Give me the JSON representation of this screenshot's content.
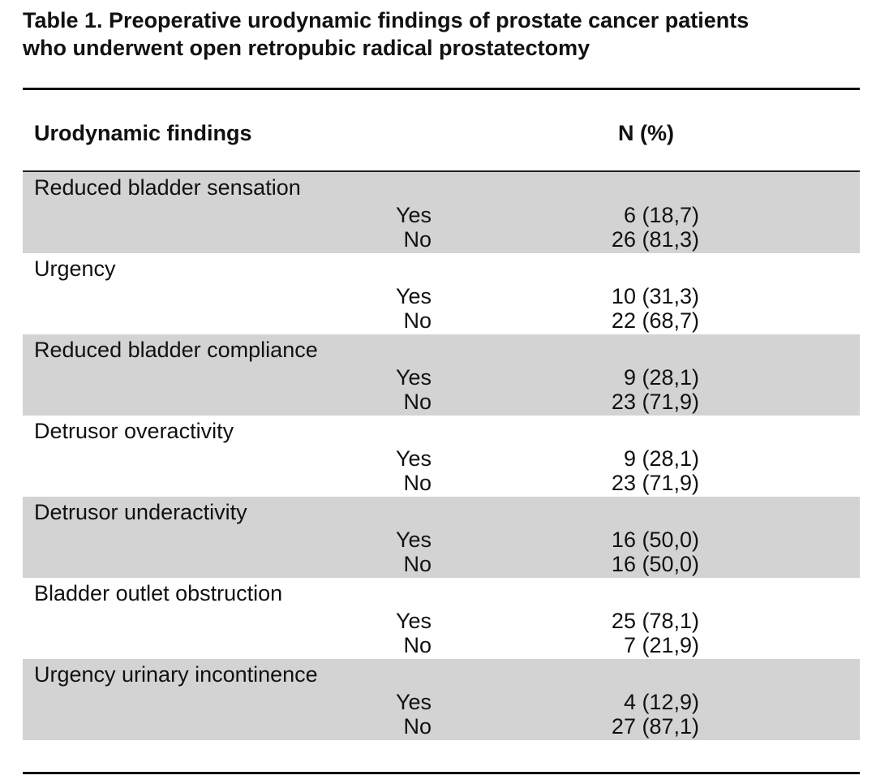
{
  "title": {
    "line1": "Table 1. Preoperative urodynamic findings of prostate cancer patients",
    "line2": "who underwent open retropubic radical prostatectomy"
  },
  "header": {
    "findings": "Urodynamic findings",
    "n_percent": "N (%)"
  },
  "rows": [
    {
      "label": "Reduced bladder sensation",
      "yes_label": "Yes",
      "yes_value": "6 (18,7)",
      "no_label": "No",
      "no_value": "26 (81,3)"
    },
    {
      "label": "Urgency",
      "yes_label": "Yes",
      "yes_value": "10 (31,3)",
      "no_label": "No",
      "no_value": "22 (68,7)"
    },
    {
      "label": "Reduced bladder compliance",
      "yes_label": "Yes",
      "yes_value": "9 (28,1)",
      "no_label": "No",
      "no_value": "23 (71,9)"
    },
    {
      "label": "Detrusor overactivity",
      "yes_label": "Yes",
      "yes_value": "9 (28,1)",
      "no_label": "No",
      "no_value": "23 (71,9)"
    },
    {
      "label": "Detrusor underactivity",
      "yes_label": "Yes",
      "yes_value": "16 (50,0)",
      "no_label": "No",
      "no_value": "16 (50,0)"
    },
    {
      "label": "Bladder outlet obstruction",
      "yes_label": "Yes",
      "yes_value": "25 (78,1)",
      "no_label": "No",
      "no_value": "7 (21,9)"
    },
    {
      "label": "Urgency urinary incontinence",
      "yes_label": "Yes",
      "yes_value": "4 (12,9)",
      "no_label": "No",
      "no_value": "27 (87,1)"
    }
  ],
  "colors": {
    "shade": "#d3d3d3",
    "text": "#111111",
    "rule": "#111111"
  }
}
